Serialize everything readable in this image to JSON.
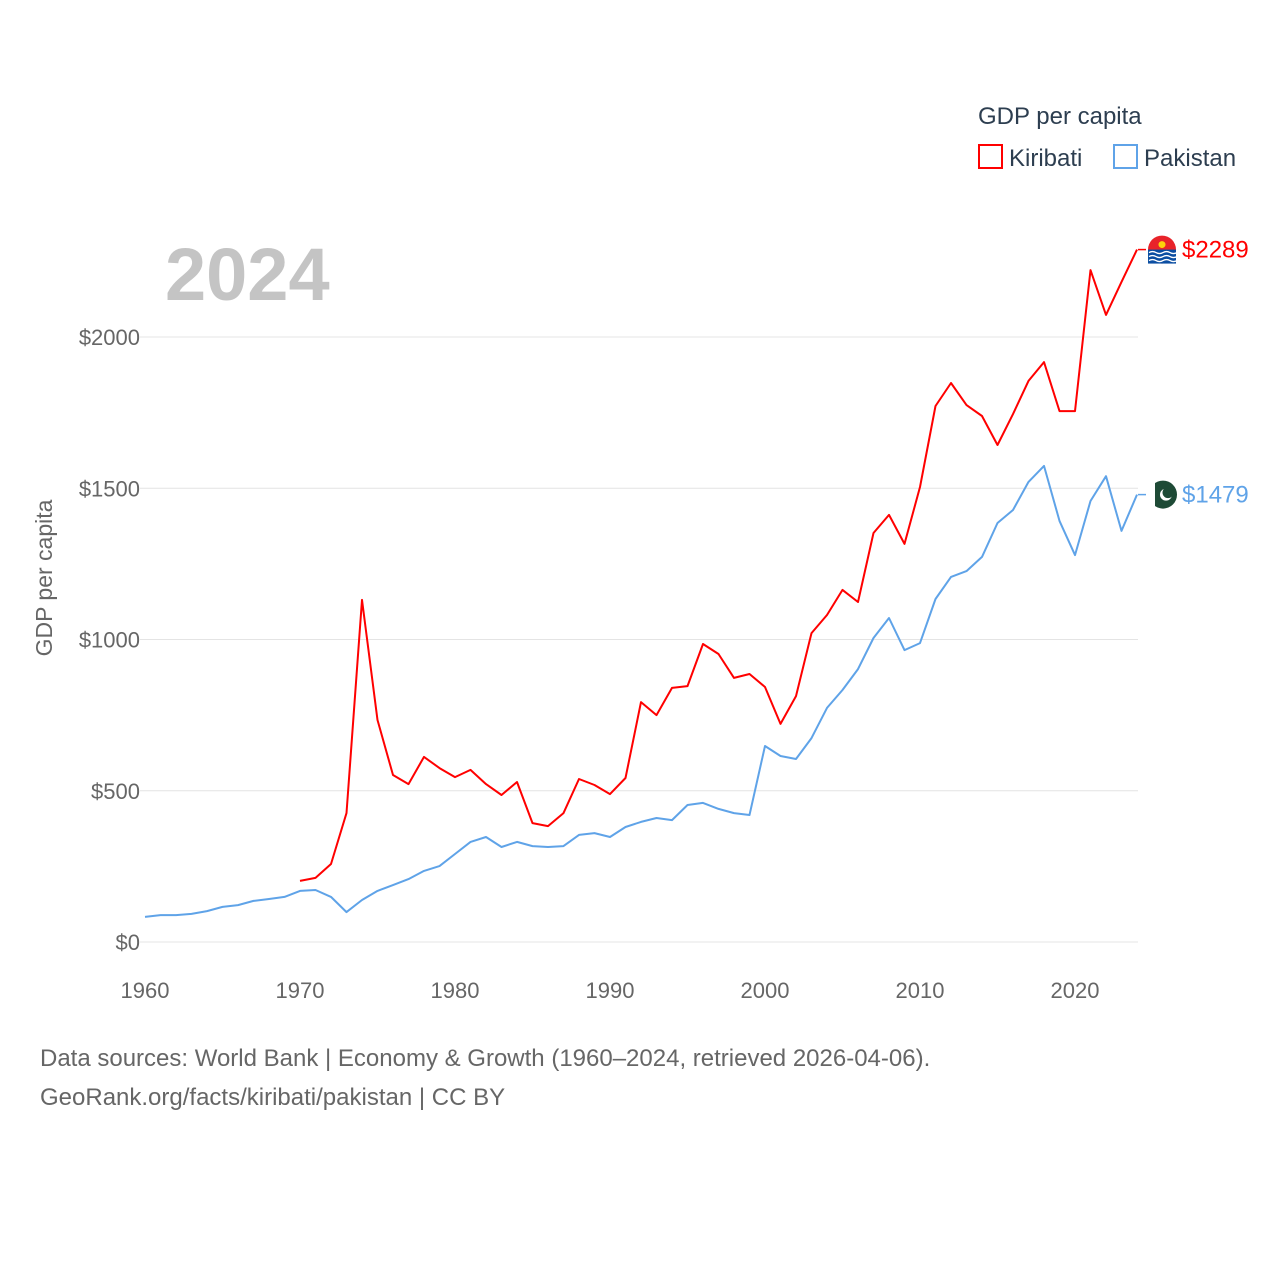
{
  "chart_data": {
    "type": "line",
    "title": "GDP per capita",
    "year_label": "2024",
    "ylabel": "GDP per capita",
    "xlabel": "",
    "xlim": [
      1960,
      2024
    ],
    "ylim": [
      0,
      2300
    ],
    "x_ticks": [
      "1960",
      "1970",
      "1980",
      "1990",
      "2000",
      "2010",
      "2020"
    ],
    "y_ticks": [
      {
        "value": 0,
        "label": "$0"
      },
      {
        "value": 500,
        "label": "$500"
      },
      {
        "value": 1000,
        "label": "$1000"
      },
      {
        "value": 1500,
        "label": "$1500"
      },
      {
        "value": 2000,
        "label": "$2000"
      }
    ],
    "grid": true,
    "legend": "top-right",
    "series": [
      {
        "name": "Kiribati",
        "color": "#ff0000",
        "end_label": "$2289",
        "start_year": 1970,
        "values": [
          202,
          212,
          258,
          426,
          1131,
          734,
          552,
          522,
          612,
          575,
          545,
          569,
          522,
          486,
          529,
          393,
          383,
          426,
          539,
          519,
          489,
          542,
          793,
          750,
          840,
          846,
          985,
          952,
          873,
          886,
          843,
          721,
          813,
          1021,
          1081,
          1164,
          1124,
          1352,
          1412,
          1316,
          1504,
          1772,
          1848,
          1775,
          1739,
          1643,
          1745,
          1855,
          1917,
          1755,
          1755,
          2221,
          2073,
          2182,
          2289
        ]
      },
      {
        "name": "Pakistan",
        "color": "#5fa3e8",
        "end_label": "$1479",
        "start_year": 1960,
        "values": [
          83,
          89,
          89,
          93,
          102,
          116,
          122,
          136,
          142,
          149,
          169,
          172,
          149,
          99,
          139,
          169,
          188,
          208,
          235,
          251,
          291,
          331,
          347,
          314,
          331,
          317,
          314,
          317,
          354,
          360,
          347,
          380,
          397,
          410,
          403,
          453,
          460,
          440,
          426,
          420,
          648,
          615,
          605,
          674,
          774,
          833,
          902,
          1005,
          1071,
          965,
          988,
          1134,
          1207,
          1226,
          1273,
          1385,
          1428,
          1521,
          1574,
          1392,
          1279,
          1458,
          1540,
          1359,
          1479
        ]
      }
    ]
  },
  "footer": {
    "line1": "Data sources: World Bank | Economy & Growth (1960–2024, retrieved 2026-04-06).",
    "line2": "GeoRank.org/facts/kiribati/pakistan | CC BY"
  }
}
